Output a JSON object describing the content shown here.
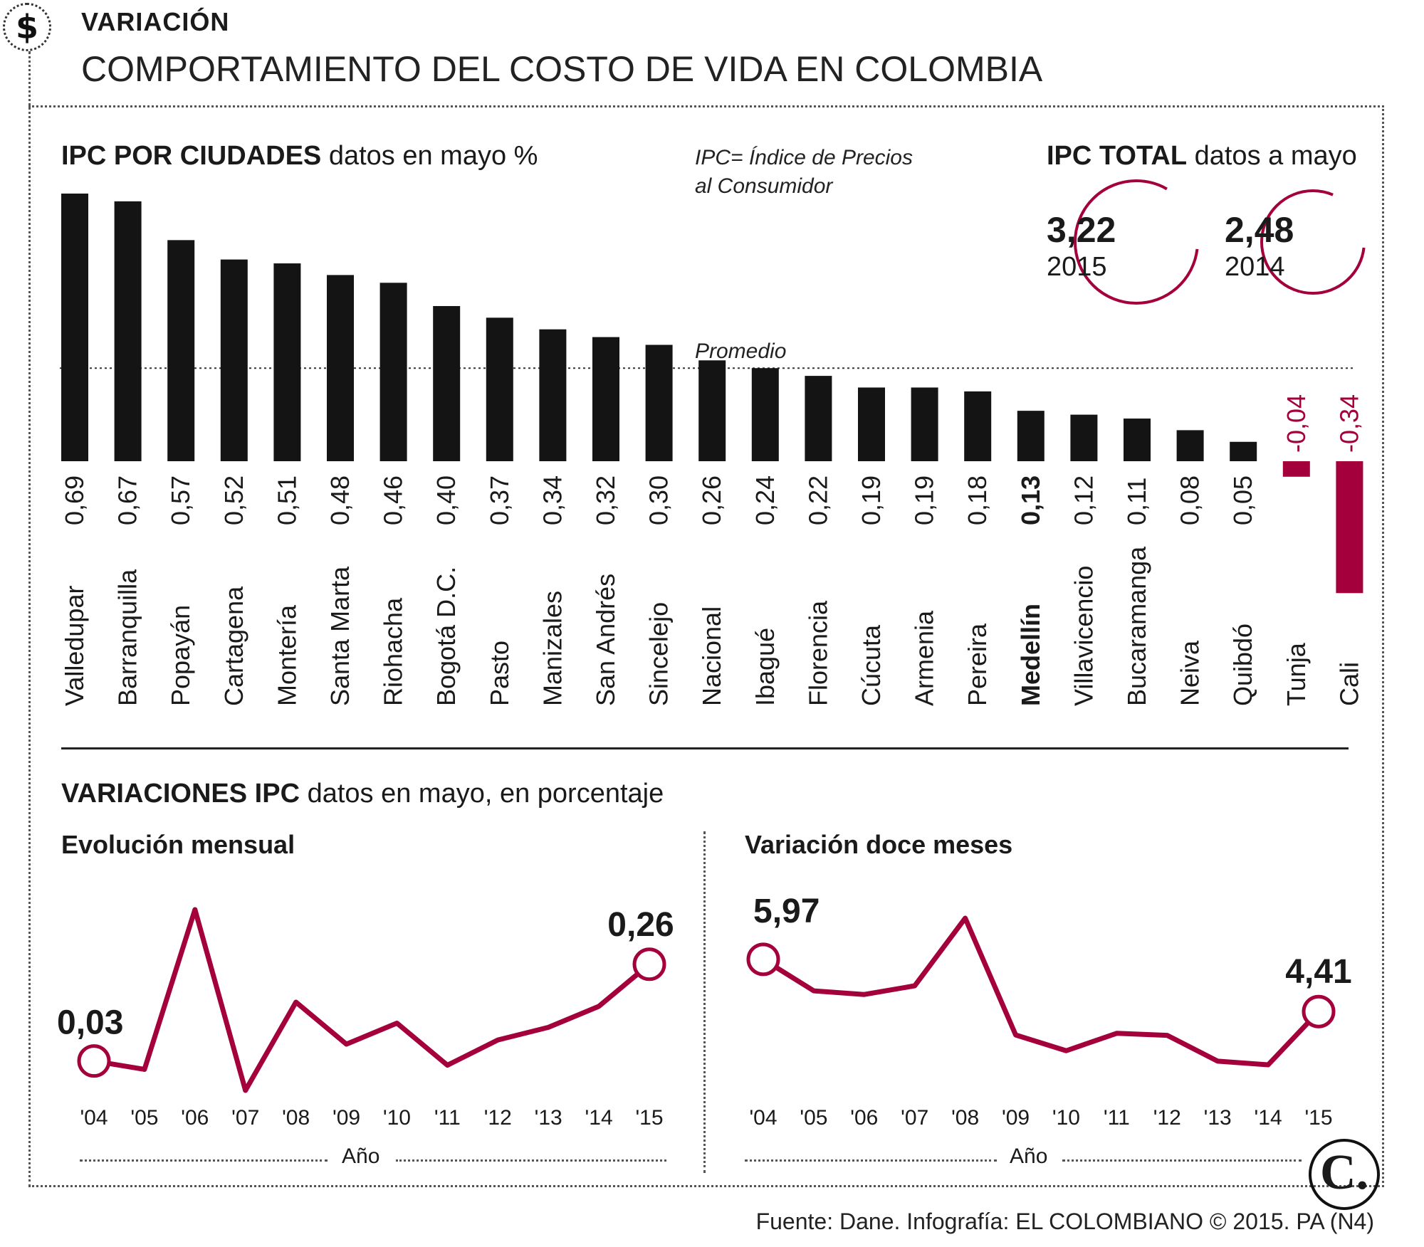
{
  "header": {
    "icon": "dollar-icon",
    "section": "VARIACIÓN",
    "title": "COMPORTAMIENTO DEL COSTO DE VIDA EN COLOMBIA"
  },
  "cities_panel": {
    "title_bold": "IPC POR CIUDADES",
    "title_rest": " datos en mayo %",
    "note_line1": "IPC= Índice de Precios",
    "note_line2": "al Consumidor",
    "average_label": "Promedio"
  },
  "total_panel": {
    "title_bold": "IPC TOTAL",
    "title_rest": " datos a mayo",
    "items": [
      {
        "value": "3,22",
        "year": "2015"
      },
      {
        "value": "2,48",
        "year": "2014"
      }
    ]
  },
  "variations_panel": {
    "title_bold": "VARIACIONES IPC",
    "title_rest": " datos en mayo, en porcentaje",
    "monthly_title": "Evolución mensual",
    "annual_title": "Variación doce meses",
    "axis_title": "Año"
  },
  "colors": {
    "bar": "#141414",
    "negative": "#a3003c",
    "line": "#a3003c"
  },
  "chart_data": [
    {
      "type": "bar",
      "title": "IPC POR CIUDADES datos en mayo %",
      "categories": [
        "Valledupar",
        "Barranquilla",
        "Popayán",
        "Cartagena",
        "Montería",
        "Santa Marta",
        "Riohacha",
        "Bogotá D.C.",
        "Pasto",
        "Manizales",
        "San Andrés",
        "Sincelejo",
        "Nacional",
        "Ibagué",
        "Florencia",
        "Cúcuta",
        "Armenia",
        "Pereira",
        "Medellín",
        "Villavicencio",
        "Bucaramanga",
        "Neiva",
        "Quibdó",
        "Tunja",
        "Cali"
      ],
      "values": [
        0.69,
        0.67,
        0.57,
        0.52,
        0.51,
        0.48,
        0.46,
        0.4,
        0.37,
        0.34,
        0.32,
        0.3,
        0.26,
        0.24,
        0.22,
        0.19,
        0.19,
        0.18,
        0.13,
        0.12,
        0.11,
        0.08,
        0.05,
        -0.04,
        -0.34
      ],
      "value_labels": [
        "0,69",
        "0,67",
        "0,57",
        "0,52",
        "0,51",
        "0,48",
        "0,46",
        "0,40",
        "0,37",
        "0,34",
        "0,32",
        "0,30",
        "0,26",
        "0,24",
        "0,22",
        "0,19",
        "0,19",
        "0,18",
        "0,13",
        "0,12",
        "0,11",
        "0,08",
        "0,05",
        "-0,04",
        "-0,34"
      ],
      "highlight": "Medellín",
      "average_line": 0.24,
      "average_label": "Promedio"
    },
    {
      "type": "line",
      "title": "Evolución mensual",
      "xlabel": "Año",
      "x": [
        "'04",
        "'05",
        "'06",
        "'07",
        "'08",
        "'09",
        "'10",
        "'11",
        "'12",
        "'13",
        "'14",
        "'15"
      ],
      "values": [
        0.03,
        0.01,
        0.39,
        -0.04,
        0.17,
        0.07,
        0.12,
        0.02,
        0.08,
        0.11,
        0.16,
        0.26
      ],
      "labeled_points": [
        {
          "index": 0,
          "label": "0,03"
        },
        {
          "index": 11,
          "label": "0,26"
        }
      ]
    },
    {
      "type": "line",
      "title": "Variación doce meses",
      "xlabel": "Año",
      "x": [
        "'04",
        "'05",
        "'06",
        "'07",
        "'08",
        "'09",
        "'10",
        "'11",
        "'12",
        "'13",
        "'14",
        "'15"
      ],
      "values": [
        5.97,
        5.03,
        4.92,
        5.18,
        7.2,
        3.71,
        3.24,
        3.76,
        3.7,
        2.93,
        2.82,
        4.41
      ],
      "labeled_points": [
        {
          "index": 0,
          "label": "5,97"
        },
        {
          "index": 11,
          "label": "4,41"
        }
      ]
    }
  ],
  "footer": {
    "source": "Fuente: Dane. Infografía: EL COLOMBIANO © 2015. PA (N4)",
    "logo": "C."
  }
}
